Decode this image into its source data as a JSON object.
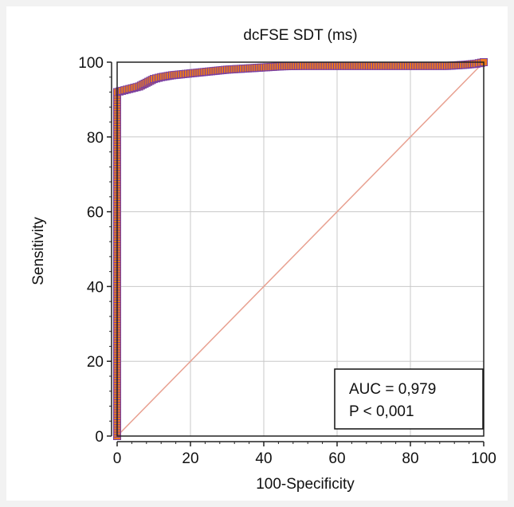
{
  "chart_data": {
    "type": "line",
    "title": "dcFSE SDT (ms)",
    "xlabel": "100-Specificity",
    "ylabel": "Sensitivity",
    "xlim": [
      0,
      100
    ],
    "ylim": [
      0,
      100
    ],
    "xticks": [
      0,
      20,
      40,
      60,
      80,
      100
    ],
    "yticks": [
      0,
      20,
      40,
      60,
      80,
      100
    ],
    "grid": true,
    "series": [
      {
        "kind": "roc-curve",
        "points": [
          [
            0,
            0
          ],
          [
            0,
            10
          ],
          [
            0,
            20
          ],
          [
            0,
            30
          ],
          [
            0,
            40
          ],
          [
            0,
            50
          ],
          [
            0,
            60
          ],
          [
            0,
            70
          ],
          [
            0,
            80
          ],
          [
            0,
            88
          ],
          [
            0,
            92
          ],
          [
            2,
            92.5
          ],
          [
            4,
            93
          ],
          [
            6,
            93.5
          ],
          [
            8,
            94.5
          ],
          [
            10,
            95.5
          ],
          [
            12,
            96
          ],
          [
            15,
            96.5
          ],
          [
            18,
            96.8
          ],
          [
            20,
            97
          ],
          [
            25,
            97.5
          ],
          [
            30,
            98
          ],
          [
            35,
            98.3
          ],
          [
            40,
            98.6
          ],
          [
            45,
            98.9
          ],
          [
            50,
            99
          ],
          [
            60,
            99
          ],
          [
            70,
            99
          ],
          [
            80,
            99
          ],
          [
            90,
            99
          ],
          [
            95,
            99.3
          ],
          [
            98,
            99.6
          ],
          [
            100,
            100
          ]
        ],
        "marker_color": "#e87722",
        "marker_edge_color": "#7a3fa0"
      },
      {
        "kind": "reference-diagonal",
        "points": [
          [
            0,
            0
          ],
          [
            100,
            100
          ]
        ],
        "color": "#e8a090"
      }
    ],
    "annotation": {
      "lines": [
        "AUC = 0,979",
        "P < 0,001"
      ]
    }
  }
}
